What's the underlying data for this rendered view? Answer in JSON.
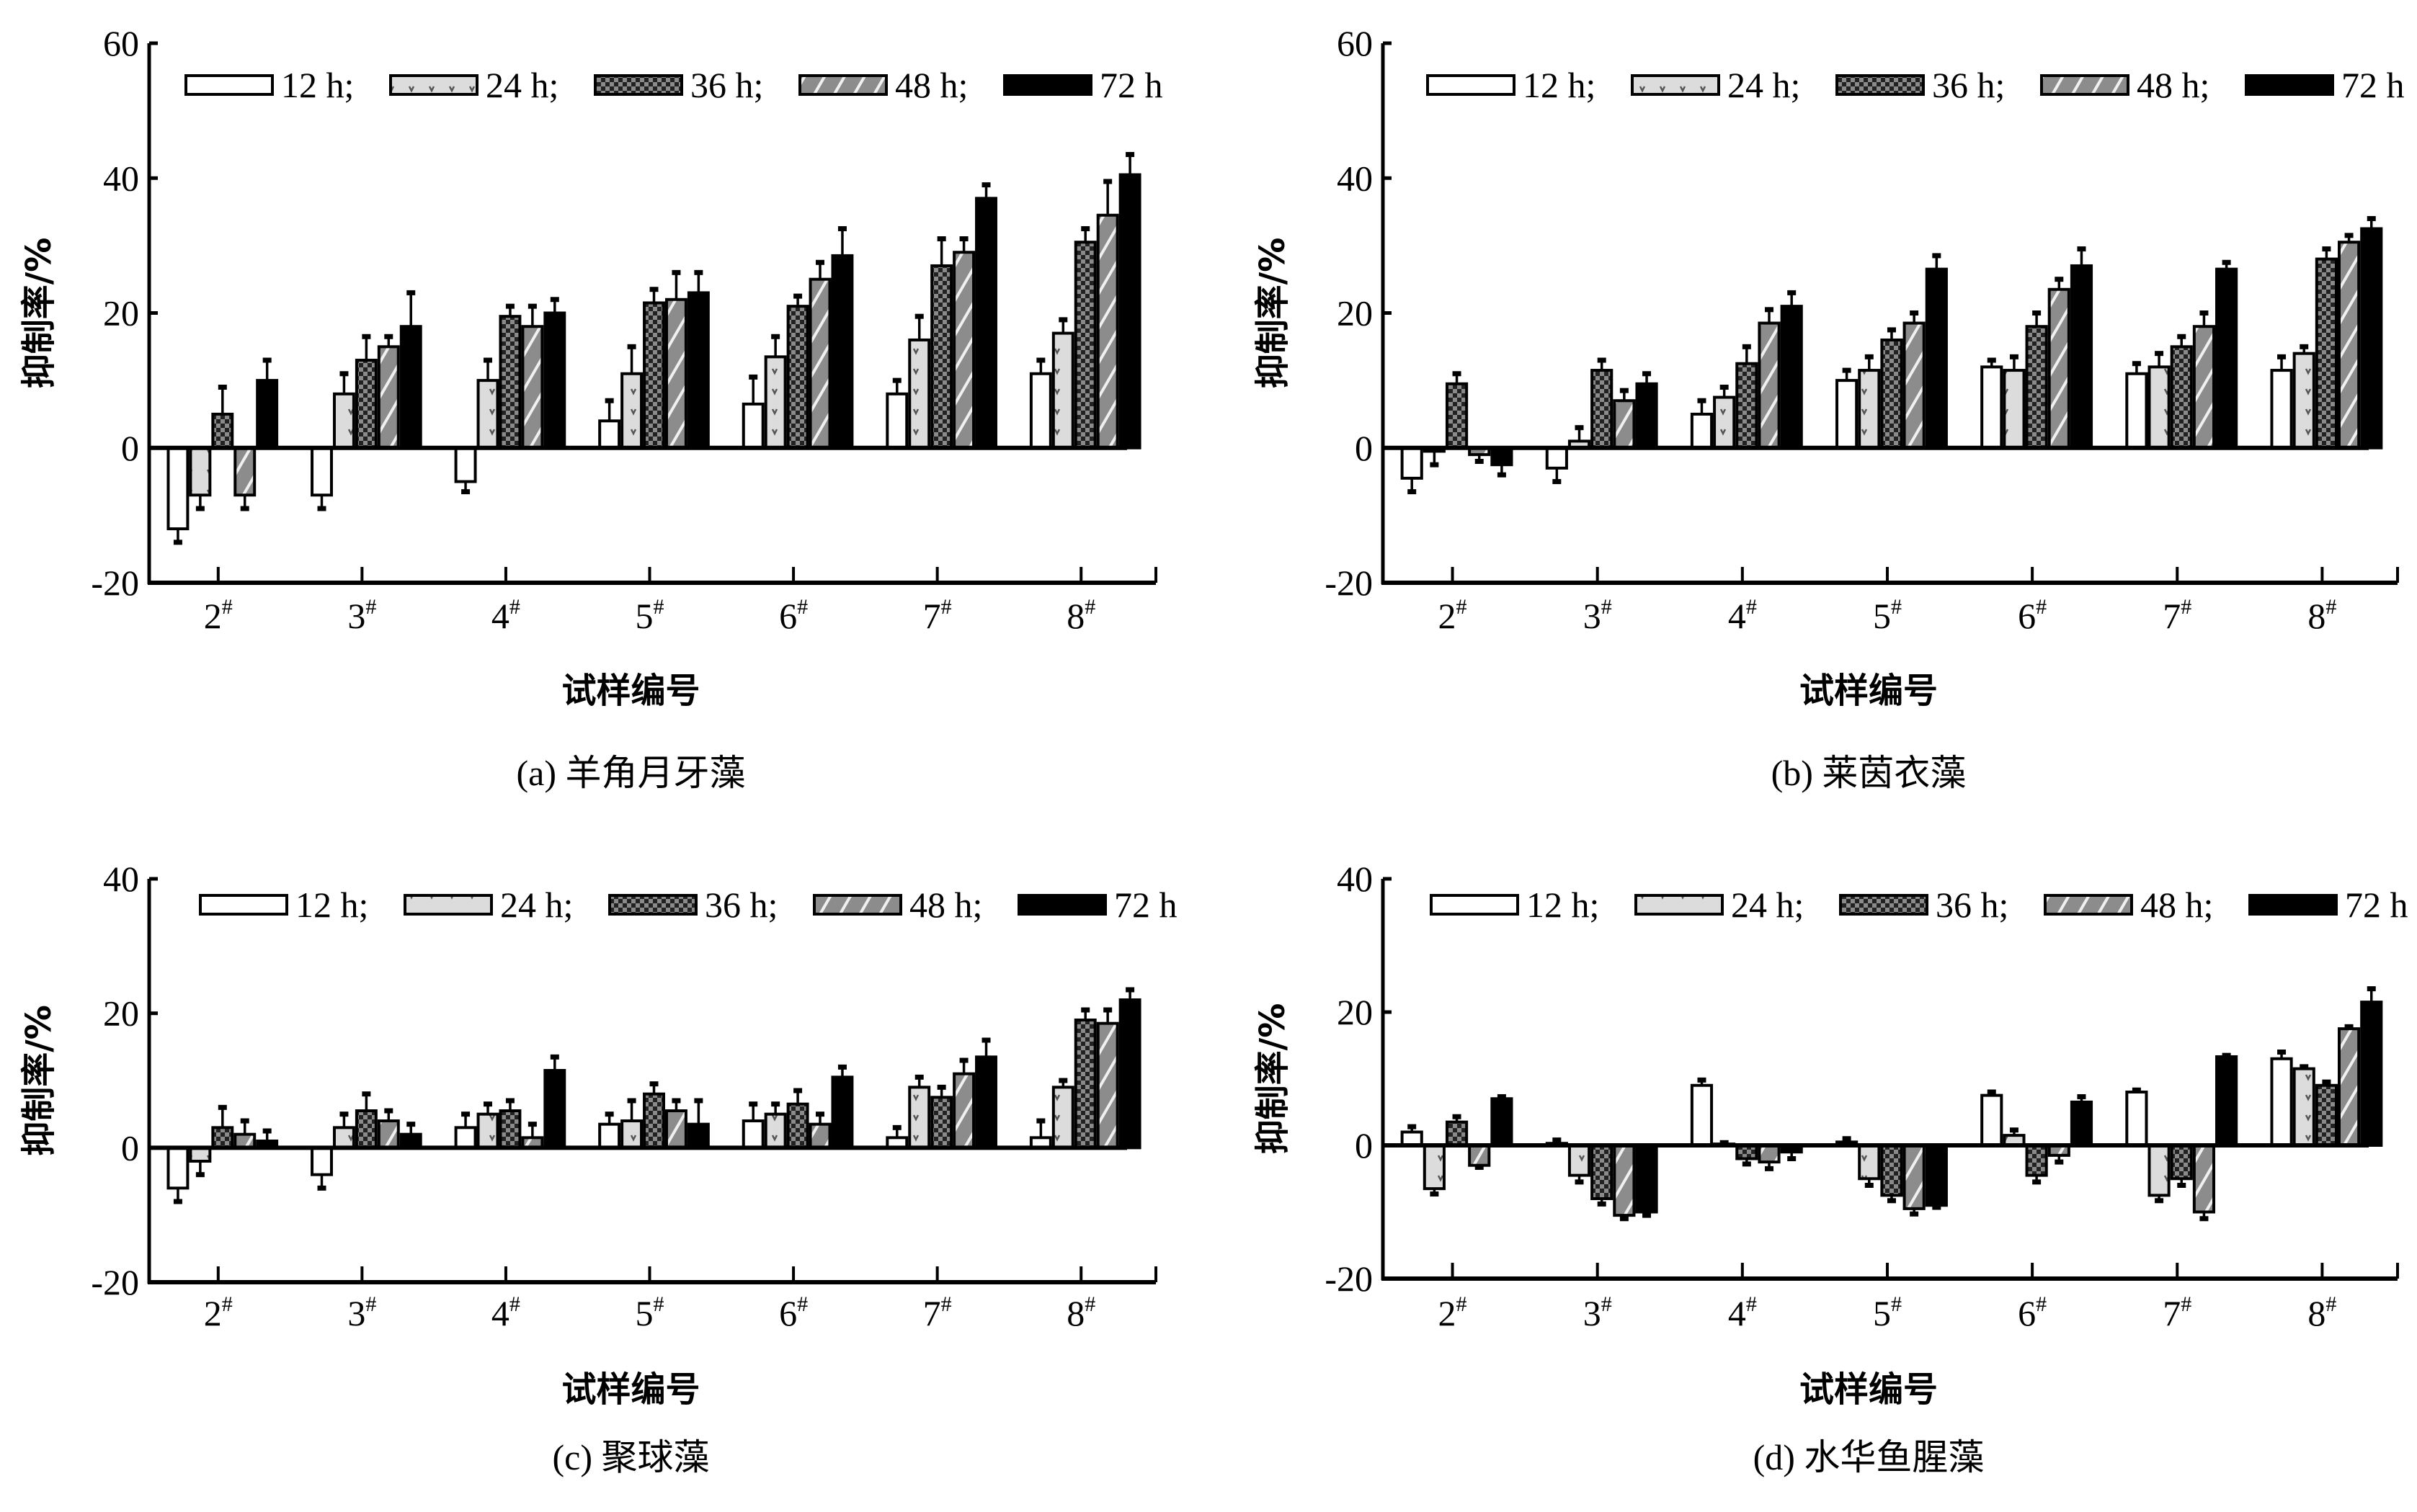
{
  "chart_data": [
    {
      "type": "bar",
      "caption": "(a)  羊角月牙藻",
      "xlabel": "试样编号",
      "ylabel": "抑制率/%",
      "ylim": [
        -20,
        60
      ],
      "yticks": [
        -20,
        0,
        20,
        40,
        60
      ],
      "legend_position": "top",
      "categories": [
        "2#",
        "3#",
        "4#",
        "5#",
        "6#",
        "7#",
        "8#"
      ],
      "series": [
        {
          "name": "12 h;",
          "values": [
            -12,
            -7,
            -5,
            4,
            6.5,
            8,
            11
          ],
          "errors": [
            2,
            2,
            1.5,
            3,
            4,
            2,
            2
          ]
        },
        {
          "name": "24 h;",
          "values": [
            -7,
            8,
            10,
            11,
            13.5,
            16,
            17
          ],
          "errors": [
            2,
            3,
            3,
            4,
            3,
            3.5,
            2
          ]
        },
        {
          "name": "36 h;",
          "values": [
            5,
            13,
            19.5,
            21.5,
            21,
            27,
            30.5
          ],
          "errors": [
            4,
            3.5,
            1.5,
            2,
            1.5,
            4,
            2
          ]
        },
        {
          "name": "48 h;",
          "values": [
            -7,
            15,
            18,
            22,
            25,
            29,
            34.5
          ],
          "errors": [
            2,
            1.5,
            3,
            4,
            2.5,
            2,
            5
          ]
        },
        {
          "name": "72 h",
          "values": [
            10,
            18,
            20,
            23,
            28.5,
            37,
            40.5
          ],
          "errors": [
            3,
            5,
            2,
            3,
            4,
            2,
            3
          ]
        }
      ]
    },
    {
      "type": "bar",
      "caption": "(b)  莱茵衣藻",
      "xlabel": "试样编号",
      "ylabel": "抑制率/%",
      "ylim": [
        -20,
        60
      ],
      "yticks": [
        -20,
        0,
        20,
        40,
        60
      ],
      "legend_position": "top",
      "categories": [
        "2#",
        "3#",
        "4#",
        "5#",
        "6#",
        "7#",
        "8#"
      ],
      "series": [
        {
          "name": "12 h;",
          "values": [
            -4.5,
            -3,
            5,
            10,
            12,
            11,
            11.5
          ],
          "errors": [
            2,
            2,
            2,
            1.5,
            1,
            1.5,
            2
          ]
        },
        {
          "name": "24 h;",
          "values": [
            -0.5,
            1,
            7.5,
            11.5,
            11.5,
            12,
            14
          ],
          "errors": [
            2,
            2,
            1.5,
            2,
            2,
            2,
            1
          ]
        },
        {
          "name": "36 h;",
          "values": [
            9.5,
            11.5,
            12.5,
            16,
            18,
            15,
            28
          ],
          "errors": [
            1.5,
            1.5,
            2.5,
            1.5,
            2,
            1.5,
            1.5
          ]
        },
        {
          "name": "48 h;",
          "values": [
            -1,
            7,
            18.5,
            18.5,
            23.5,
            18,
            30.5
          ],
          "errors": [
            1,
            1.5,
            2,
            1.5,
            1.5,
            2,
            1
          ]
        },
        {
          "name": "72 h",
          "values": [
            -2.5,
            9.5,
            21,
            26.5,
            27,
            26.5,
            32.5
          ],
          "errors": [
            1.5,
            1.5,
            2,
            2,
            2.5,
            1,
            1.5
          ]
        }
      ]
    },
    {
      "type": "bar",
      "caption": "(c)  聚球藻",
      "xlabel": "试样编号",
      "ylabel": "抑制率/%",
      "ylim": [
        -20,
        40
      ],
      "yticks": [
        -20,
        0,
        20,
        40
      ],
      "legend_position": "top",
      "categories": [
        "2#",
        "3#",
        "4#",
        "5#",
        "6#",
        "7#",
        "8#"
      ],
      "series": [
        {
          "name": "12 h;",
          "values": [
            -6,
            -4,
            3,
            3.5,
            4,
            1.5,
            1.5
          ],
          "errors": [
            2,
            2,
            2,
            1.5,
            2.5,
            1.5,
            2.5
          ]
        },
        {
          "name": "24 h;",
          "values": [
            -2,
            3,
            5,
            4,
            5,
            9,
            9
          ],
          "errors": [
            2,
            2,
            1.5,
            3,
            1.5,
            1.5,
            1
          ]
        },
        {
          "name": "36 h;",
          "values": [
            3,
            5.5,
            5.5,
            8,
            6.5,
            7.5,
            19
          ],
          "errors": [
            3,
            2.5,
            1.5,
            1.5,
            2,
            1.5,
            1.5
          ]
        },
        {
          "name": "48 h;",
          "values": [
            2,
            4,
            1.5,
            5.5,
            3.5,
            11,
            18.5
          ],
          "errors": [
            2,
            1.5,
            2,
            1.5,
            1.5,
            2,
            2
          ]
        },
        {
          "name": "72 h",
          "values": [
            1,
            2,
            11.5,
            3.5,
            10.5,
            13.5,
            22
          ],
          "errors": [
            1.5,
            1.5,
            2,
            3.5,
            1.5,
            2.5,
            1.5
          ]
        }
      ]
    },
    {
      "type": "bar",
      "caption": "(d)  水华鱼腥藻",
      "xlabel": "试样编号",
      "ylabel": "抑制率/%",
      "ylim": [
        -20,
        40
      ],
      "yticks": [
        -20,
        0,
        20,
        40
      ],
      "legend_position": "top",
      "categories": [
        "2#",
        "3#",
        "4#",
        "5#",
        "6#",
        "7#",
        "8#"
      ],
      "series": [
        {
          "name": "12 h;",
          "values": [
            2,
            0.3,
            9,
            0.5,
            7.5,
            8,
            13
          ],
          "errors": [
            0.8,
            0.5,
            0.8,
            0.5,
            0.5,
            0.3,
            1
          ]
        },
        {
          "name": "24 h;",
          "values": [
            -6.5,
            -4.5,
            0.2,
            -5,
            1.5,
            -7.5,
            11.5
          ],
          "errors": [
            0.8,
            1,
            0.2,
            1,
            0.8,
            0.8,
            0.3
          ]
        },
        {
          "name": "36 h;",
          "values": [
            3.5,
            -8,
            -2,
            -7.5,
            -4.5,
            -5,
            9
          ],
          "errors": [
            0.8,
            0.8,
            0.8,
            0.8,
            1,
            1,
            0.5
          ]
        },
        {
          "name": "48 h;",
          "values": [
            -3,
            -10.5,
            -2.5,
            -9.5,
            -1.5,
            -10,
            17.5
          ],
          "errors": [
            0.3,
            0.5,
            1,
            0.8,
            1,
            1,
            0.3
          ]
        },
        {
          "name": "72 h",
          "values": [
            7,
            -10,
            -1,
            -9,
            6.5,
            13.3,
            21.5
          ],
          "errors": [
            0.3,
            0.5,
            1,
            0.3,
            0.8,
            0.2,
            2
          ]
        }
      ]
    }
  ],
  "colors": {
    "black": "#000000",
    "light_gray": "#d9d9d9",
    "mid_gray": "#8c8c8c",
    "dark_gray": "#555555",
    "white": "#ffffff"
  }
}
